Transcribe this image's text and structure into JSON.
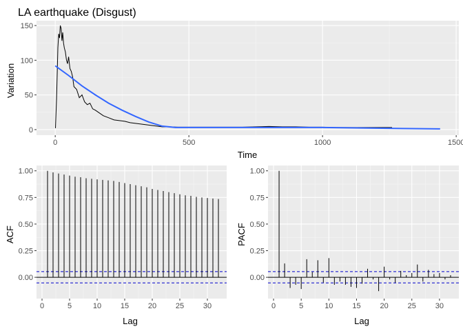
{
  "theme": {
    "panel_bg": "#EBEBEB",
    "grid_major": "#FFFFFF",
    "grid_minor": "#F5F5F5",
    "line_color": "#000000",
    "smooth_color": "#3366FF",
    "ci_color": "#0000CC",
    "tick_color": "#333333"
  },
  "chart_data": [
    {
      "id": "timeseries",
      "type": "line",
      "title": "LA earthquake (Disgust)",
      "xlabel": "Time",
      "ylabel": "Variation",
      "xlim": [
        -70,
        1510
      ],
      "ylim": [
        -8,
        157
      ],
      "xticks": [
        0,
        500,
        1000,
        1500
      ],
      "xtick_labels": [
        "0",
        "500",
        "1000",
        "1500"
      ],
      "yticks": [
        0,
        50,
        100,
        150
      ],
      "ytick_labels": [
        "0",
        "50",
        "100",
        "150"
      ],
      "grid": true,
      "series": [
        {
          "role": "raw",
          "x": [
            1,
            5,
            8,
            10,
            13,
            16,
            19,
            22,
            25,
            28,
            31,
            34,
            38,
            42,
            46,
            50,
            55,
            60,
            65,
            70,
            80,
            90,
            100,
            110,
            120,
            130,
            140,
            150,
            165,
            180,
            200,
            220,
            240,
            260,
            280,
            300,
            320,
            340,
            360,
            380,
            400,
            430,
            460,
            500,
            550,
            600,
            650,
            700,
            750,
            800,
            850,
            900,
            950,
            1000,
            1050,
            1100,
            1150,
            1200,
            1260
          ],
          "y": [
            2,
            45,
            90,
            118,
            138,
            132,
            150,
            146,
            128,
            140,
            125,
            118,
            112,
            100,
            95,
            105,
            88,
            84,
            76,
            62,
            58,
            46,
            50,
            40,
            36,
            38,
            30,
            28,
            24,
            20,
            17,
            14,
            13,
            12,
            10,
            9,
            8,
            7,
            6,
            5,
            4,
            4,
            3.5,
            3.5,
            3.5,
            3.5,
            3.5,
            3.5,
            4,
            4.5,
            4,
            4,
            3.5,
            3.5,
            3,
            3,
            3,
            3,
            3
          ]
        },
        {
          "role": "smooth",
          "x": [
            0,
            50,
            100,
            150,
            200,
            250,
            300,
            350,
            400,
            450,
            500,
            600,
            700,
            800,
            900,
            1000,
            1100,
            1200,
            1300,
            1440
          ],
          "y": [
            92,
            78,
            63,
            50,
            38,
            28,
            19,
            11,
            5,
            3,
            3,
            3,
            3,
            3,
            3,
            3,
            2.5,
            2,
            1.5,
            1
          ]
        }
      ]
    },
    {
      "id": "acf",
      "type": "bar",
      "xlabel": "Lag",
      "ylabel": "ACF",
      "xlim": [
        -1,
        33.5
      ],
      "ylim": [
        -0.2,
        1.05
      ],
      "xticks": [
        0,
        5,
        10,
        15,
        20,
        25,
        30
      ],
      "xtick_labels": [
        "0",
        "5",
        "10",
        "15",
        "20",
        "25",
        "30"
      ],
      "yticks": [
        0,
        0.25,
        0.5,
        0.75,
        1
      ],
      "ytick_labels": [
        "0.00",
        "0.25",
        "0.50",
        "0.75",
        "1.00"
      ],
      "ci": 0.053,
      "grid": true,
      "lags": [
        1,
        2,
        3,
        4,
        5,
        6,
        7,
        8,
        9,
        10,
        11,
        12,
        13,
        14,
        15,
        16,
        17,
        18,
        19,
        20,
        21,
        22,
        23,
        24,
        25,
        26,
        27,
        28,
        29,
        30,
        31,
        32
      ],
      "values": [
        1.0,
        0.985,
        0.975,
        0.965,
        0.955,
        0.945,
        0.94,
        0.93,
        0.925,
        0.92,
        0.915,
        0.91,
        0.905,
        0.895,
        0.885,
        0.875,
        0.865,
        0.855,
        0.845,
        0.83,
        0.82,
        0.81,
        0.8,
        0.79,
        0.78,
        0.77,
        0.765,
        0.755,
        0.75,
        0.745,
        0.74,
        0.735
      ]
    },
    {
      "id": "pacf",
      "type": "bar",
      "xlabel": "Lag",
      "ylabel": "PACF",
      "xlim": [
        -1,
        33.5
      ],
      "ylim": [
        -0.2,
        1.05
      ],
      "xticks": [
        0,
        5,
        10,
        15,
        20,
        25,
        30
      ],
      "xtick_labels": [
        "0",
        "5",
        "10",
        "15",
        "20",
        "25",
        "30"
      ],
      "yticks": [
        0,
        0.25,
        0.5,
        0.75,
        1
      ],
      "ytick_labels": [
        "0.00",
        "0.25",
        "0.50",
        "0.75",
        "1.00"
      ],
      "ci": 0.053,
      "grid": true,
      "lags": [
        1,
        2,
        3,
        4,
        5,
        6,
        7,
        8,
        9,
        10,
        11,
        12,
        13,
        14,
        15,
        16,
        17,
        18,
        19,
        20,
        21,
        22,
        23,
        24,
        25,
        26,
        27,
        28,
        29,
        30,
        31,
        32
      ],
      "values": [
        1.0,
        0.13,
        -0.1,
        -0.07,
        -0.11,
        0.17,
        0.05,
        0.16,
        -0.05,
        0.18,
        -0.07,
        -0.04,
        -0.07,
        -0.09,
        -0.1,
        -0.06,
        0.08,
        -0.02,
        -0.13,
        0.1,
        -0.02,
        -0.05,
        0.06,
        0.02,
        0.04,
        0.12,
        -0.04,
        0.07,
        0.03,
        0.04,
        -0.02,
        0.02
      ]
    }
  ]
}
